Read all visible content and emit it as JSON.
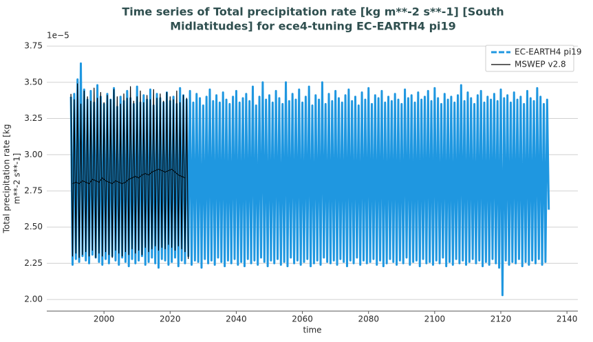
{
  "chart_data": {
    "type": "line",
    "title": [
      "Time series of Total precipitation rate [kg m**-2 s**-1] [South",
      "Midlatitudes] for ece4-tuning EC-EARTH4 pi19"
    ],
    "xlabel": "time",
    "ylabel": [
      "Total precipitation rate [kg",
      "m**-2 s**-1]"
    ],
    "y_offset_label": "1e−5",
    "xlim": [
      1982.7,
      2143.3
    ],
    "ylim": [
      1.92,
      3.76
    ],
    "xticks": [
      2000,
      2020,
      2040,
      2060,
      2080,
      2100,
      2120,
      2140
    ],
    "yticks": [
      {
        "value": 2,
        "label": "2.00"
      },
      2.25,
      {
        "value": 2.5,
        "label": "2.50"
      },
      2.75,
      {
        "value": 3,
        "label": "3.00"
      },
      3.25,
      {
        "value": 3.5,
        "label": "3.50"
      },
      3.75
    ],
    "grid": true,
    "legend": "upper right",
    "series": [
      {
        "name": "EC-EARTH4 pi19",
        "color": "#1f97e0",
        "dashed_legend": true,
        "x": [
          1990,
          1990.5,
          1991,
          1991.5,
          1992,
          1992.5,
          1993,
          1993.5,
          1994,
          1994.5,
          1995,
          1995.5,
          1996,
          1996.5,
          1997,
          1997.5,
          1998,
          1998.5,
          1999,
          1999.5,
          2000,
          2000.5,
          2001,
          2001.5,
          2002,
          2002.5,
          2003,
          2003.5,
          2004,
          2004.5,
          2005,
          2005.5,
          2006,
          2006.5,
          2007,
          2007.5,
          2008,
          2008.5,
          2009,
          2009.5,
          2010,
          2010.5,
          2011,
          2011.5,
          2012,
          2012.5,
          2013,
          2013.5,
          2014,
          2014.5,
          2015,
          2015.5,
          2016,
          2016.5,
          2017,
          2017.5,
          2018,
          2018.5,
          2019,
          2019.5,
          2020,
          2020.5,
          2021,
          2021.5,
          2022,
          2022.5,
          2023,
          2023.5,
          2024,
          2024.5,
          2025,
          2025.5,
          2026,
          2026.5,
          2027,
          2027.5,
          2028,
          2028.5,
          2029,
          2029.5,
          2030,
          2030.5,
          2031,
          2031.5,
          2032,
          2032.5,
          2033,
          2033.5,
          2034,
          2034.5,
          2035,
          2035.5,
          2036,
          2036.5,
          2037,
          2037.5,
          2038,
          2038.5,
          2039,
          2039.5,
          2040,
          2040.5,
          2041,
          2041.5,
          2042,
          2042.5,
          2043,
          2043.5,
          2044,
          2044.5,
          2045,
          2045.5,
          2046,
          2046.5,
          2047,
          2047.5,
          2048,
          2048.5,
          2049,
          2049.5,
          2050,
          2050.5,
          2051,
          2051.5,
          2052,
          2052.5,
          2053,
          2053.5,
          2054,
          2054.5,
          2055,
          2055.5,
          2056,
          2056.5,
          2057,
          2057.5,
          2058,
          2058.5,
          2059,
          2059.5,
          2060,
          2060.5,
          2061,
          2061.5,
          2062,
          2062.5,
          2063,
          2063.5,
          2064,
          2064.5,
          2065,
          2065.5,
          2066,
          2066.5,
          2067,
          2067.5,
          2068,
          2068.5,
          2069,
          2069.5,
          2070,
          2070.5,
          2071,
          2071.5,
          2072,
          2072.5,
          2073,
          2073.5,
          2074,
          2074.5,
          2075,
          2075.5,
          2076,
          2076.5,
          2077,
          2077.5,
          2078,
          2078.5,
          2079,
          2079.5,
          2080,
          2080.5,
          2081,
          2081.5,
          2082,
          2082.5,
          2083,
          2083.5,
          2084,
          2084.5,
          2085,
          2085.5,
          2086,
          2086.5,
          2087,
          2087.5,
          2088,
          2088.5,
          2089,
          2089.5,
          2090,
          2090.5,
          2091,
          2091.5,
          2092,
          2092.5,
          2093,
          2093.5,
          2094,
          2094.5,
          2095,
          2095.5,
          2096,
          2096.5,
          2097,
          2097.5,
          2098,
          2098.5,
          2099,
          2099.5,
          2100,
          2100.5,
          2101,
          2101.5,
          2102,
          2102.5,
          2103,
          2103.5,
          2104,
          2104.5,
          2105,
          2105.5,
          2106,
          2106.5,
          2107,
          2107.5,
          2108,
          2108.5,
          2109,
          2109.5,
          2110,
          2110.5,
          2111,
          2111.5,
          2112,
          2112.5,
          2113,
          2113.5,
          2114,
          2114.5,
          2115,
          2115.5,
          2116,
          2116.5,
          2117,
          2117.5,
          2118,
          2118.5,
          2119,
          2119.5,
          2120,
          2120.5,
          2121,
          2121.5,
          2122,
          2122.5,
          2123,
          2123.5,
          2124,
          2124.5,
          2125,
          2125.5,
          2126,
          2126.5,
          2127,
          2127.5,
          2128,
          2128.5,
          2129,
          2129.5,
          2130,
          2130.5,
          2131,
          2131.5,
          2132,
          2132.5,
          2133,
          2133.5,
          2134,
          2134.5
        ],
        "values": [
          3.4,
          2.24,
          3.42,
          2.28,
          3.52,
          2.26,
          3.63,
          2.3,
          3.45,
          2.27,
          3.38,
          2.25,
          3.44,
          2.31,
          3.36,
          2.29,
          3.48,
          2.26,
          3.4,
          2.24,
          3.35,
          2.28,
          3.42,
          2.25,
          3.38,
          2.3,
          3.46,
          2.27,
          3.33,
          2.24,
          3.4,
          2.29,
          3.37,
          2.26,
          3.44,
          2.23,
          3.39,
          2.28,
          3.35,
          2.25,
          3.47,
          2.27,
          3.36,
          2.3,
          3.41,
          2.24,
          3.38,
          2.26,
          3.45,
          2.29,
          3.34,
          2.25,
          3.42,
          2.22,
          3.39,
          2.28,
          3.36,
          2.27,
          3.43,
          2.24,
          3.37,
          2.26,
          3.4,
          2.29,
          3.35,
          2.23,
          3.46,
          2.27,
          3.41,
          2.25,
          3.38,
          2.3,
          3.44,
          2.24,
          3.36,
          2.27,
          3.42,
          2.26,
          3.39,
          2.22,
          3.34,
          2.28,
          3.4,
          2.25,
          3.45,
          2.27,
          3.37,
          2.24,
          3.41,
          2.29,
          3.36,
          2.26,
          3.43,
          2.23,
          3.38,
          2.27,
          3.35,
          2.25,
          3.4,
          2.28,
          3.44,
          2.24,
          3.36,
          2.26,
          3.39,
          2.23,
          3.42,
          2.28,
          3.37,
          2.25,
          3.47,
          2.27,
          3.34,
          2.24,
          3.4,
          2.29,
          3.5,
          2.26,
          3.38,
          2.23,
          3.41,
          2.27,
          3.36,
          2.25,
          3.44,
          2.28,
          3.39,
          2.24,
          3.35,
          2.26,
          3.5,
          2.23,
          3.37,
          2.29,
          3.42,
          2.25,
          3.38,
          2.27,
          3.45,
          2.24,
          3.36,
          2.26,
          3.4,
          2.28,
          3.47,
          2.23,
          3.34,
          2.25,
          3.41,
          2.27,
          3.38,
          2.24,
          3.5,
          2.29,
          3.35,
          2.26,
          3.42,
          2.25,
          3.37,
          2.27,
          3.44,
          2.24,
          3.39,
          2.28,
          3.36,
          2.26,
          3.41,
          2.23,
          3.45,
          2.27,
          3.37,
          2.25,
          3.4,
          2.29,
          3.34,
          2.24,
          3.43,
          2.27,
          3.38,
          2.25,
          3.46,
          2.26,
          3.35,
          2.28,
          3.41,
          2.24,
          3.39,
          2.27,
          3.44,
          2.23,
          3.36,
          2.25,
          3.4,
          2.28,
          3.37,
          2.26,
          3.42,
          2.24,
          3.38,
          2.27,
          3.35,
          2.25,
          3.45,
          2.29,
          3.39,
          2.24,
          3.41,
          2.26,
          3.36,
          2.27,
          3.43,
          2.23,
          3.38,
          2.28,
          3.4,
          2.25,
          3.44,
          2.26,
          3.37,
          2.24,
          3.46,
          2.27,
          3.39,
          2.25,
          3.35,
          2.29,
          3.42,
          2.23,
          3.38,
          2.26,
          3.4,
          2.24,
          3.36,
          2.28,
          3.41,
          2.25,
          3.48,
          2.27,
          3.37,
          2.24,
          3.43,
          2.26,
          3.39,
          2.28,
          3.35,
          2.25,
          3.41,
          2.27,
          3.44,
          2.23,
          3.36,
          2.26,
          3.4,
          2.24,
          3.38,
          2.28,
          3.42,
          2.25,
          3.37,
          2.22,
          3.45,
          2.03,
          3.39,
          2.27,
          3.41,
          2.24,
          3.36,
          2.26,
          3.43,
          2.25,
          3.38,
          2.28,
          3.4,
          2.23,
          3.35,
          2.26,
          3.44,
          2.24,
          3.39,
          2.27,
          3.37,
          2.25,
          3.46,
          2.28,
          3.4,
          2.24,
          3.35,
          2.26,
          3.38,
          2.62
        ]
      },
      {
        "name": "MSWEP v2.8",
        "color": "#000000",
        "x": [
          1990,
          1990.5,
          1991,
          1991.5,
          1992,
          1992.5,
          1993,
          1993.5,
          1994,
          1994.5,
          1995,
          1995.5,
          1996,
          1996.5,
          1997,
          1997.5,
          1998,
          1998.5,
          1999,
          1999.5,
          2000,
          2000.5,
          2001,
          2001.5,
          2002,
          2002.5,
          2003,
          2003.5,
          2004,
          2004.5,
          2005,
          2005.5,
          2006,
          2006.5,
          2007,
          2007.5,
          2008,
          2008.5,
          2009,
          2009.5,
          2010,
          2010.5,
          2011,
          2011.5,
          2012,
          2012.5,
          2013,
          2013.5,
          2014,
          2014.5,
          2015,
          2015.5,
          2016,
          2016.5,
          2017,
          2017.5,
          2018,
          2018.5,
          2019,
          2019.5,
          2020,
          2020.5,
          2021,
          2021.5,
          2022,
          2022.5,
          2023,
          2023.5,
          2024,
          2024.5,
          2025,
          2025.5
        ],
        "values": [
          3.42,
          2.3,
          3.38,
          2.32,
          3.49,
          2.29,
          3.35,
          2.31,
          3.44,
          2.33,
          3.4,
          2.3,
          3.37,
          2.34,
          3.46,
          2.29,
          3.39,
          2.32,
          3.43,
          2.3,
          3.36,
          2.33,
          3.41,
          2.31,
          3.38,
          2.29,
          3.45,
          2.34,
          3.4,
          2.32,
          3.35,
          2.3,
          3.42,
          2.33,
          3.39,
          2.31,
          3.47,
          2.35,
          3.37,
          2.32,
          3.4,
          2.34,
          3.44,
          2.31,
          3.36,
          2.36,
          3.41,
          2.33,
          3.38,
          2.35,
          3.45,
          2.37,
          3.39,
          2.34,
          3.42,
          2.36,
          3.37,
          2.35,
          3.43,
          2.38,
          3.4,
          2.36,
          3.38,
          2.34,
          3.44,
          2.37,
          3.36,
          2.35,
          3.41,
          2.33,
          3.39,
          2.28
        ],
        "mean_x": [
          1990.5,
          1991.5,
          1992.5,
          1993.5,
          1994.5,
          1995.5,
          1996.5,
          1997.5,
          1998.5,
          1999.5,
          2000.5,
          2001.5,
          2002.5,
          2003.5,
          2004.5,
          2005.5,
          2006.5,
          2007.5,
          2008.5,
          2009.5,
          2010.5,
          2011.5,
          2012.5,
          2013.5,
          2014.5,
          2015.5,
          2016.5,
          2017.5,
          2018.5,
          2019.5,
          2020.5,
          2021.5,
          2022.5,
          2023.5,
          2024.5
        ],
        "mean_values": [
          2.8,
          2.81,
          2.8,
          2.82,
          2.81,
          2.8,
          2.83,
          2.82,
          2.81,
          2.84,
          2.82,
          2.81,
          2.8,
          2.82,
          2.81,
          2.8,
          2.81,
          2.83,
          2.84,
          2.85,
          2.84,
          2.86,
          2.87,
          2.86,
          2.88,
          2.89,
          2.9,
          2.89,
          2.88,
          2.89,
          2.9,
          2.88,
          2.86,
          2.85,
          2.84
        ]
      }
    ]
  }
}
